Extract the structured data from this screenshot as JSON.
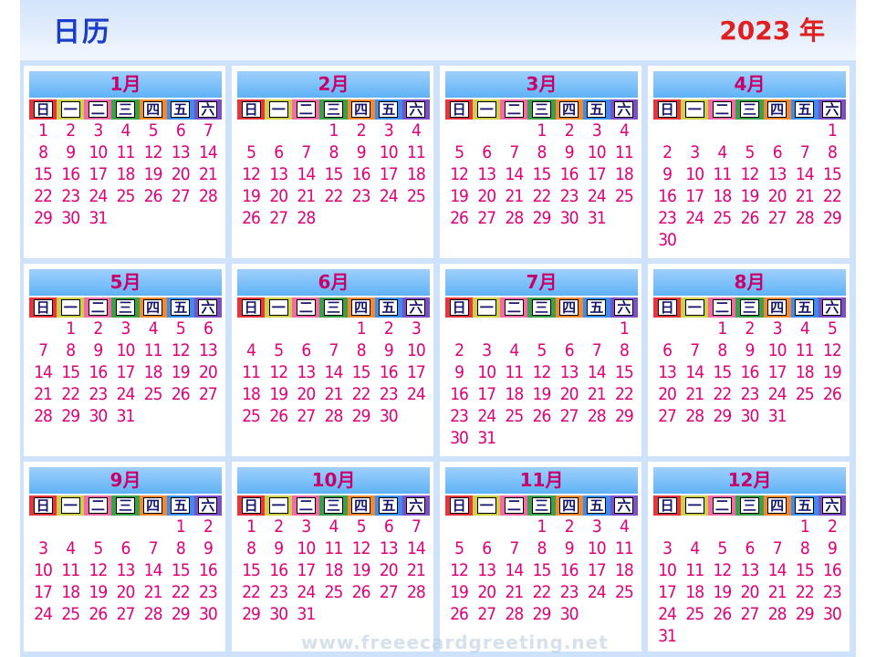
{
  "header": {
    "title": "日历",
    "year": "2023 年"
  },
  "weekdays": [
    "日",
    "一",
    "二",
    "三",
    "四",
    "五",
    "六"
  ],
  "weekday_colors": [
    "#e8343c",
    "#cfcf4a",
    "#f46aa6",
    "#3ca04a",
    "#f4882e",
    "#3a8ef0",
    "#7e4ec8"
  ],
  "watermark": "www.freeecardgreeting.net",
  "months": [
    {
      "name": "1月",
      "offset": 0,
      "days": 31
    },
    {
      "name": "2月",
      "offset": 3,
      "days": 28
    },
    {
      "name": "3月",
      "offset": 3,
      "days": 31
    },
    {
      "name": "4月",
      "offset": 6,
      "days": 30
    },
    {
      "name": "5月",
      "offset": 1,
      "days": 31
    },
    {
      "name": "6月",
      "offset": 4,
      "days": 30
    },
    {
      "name": "7月",
      "offset": 6,
      "days": 31
    },
    {
      "name": "8月",
      "offset": 2,
      "days": 31
    },
    {
      "name": "9月",
      "offset": 5,
      "days": 30
    },
    {
      "name": "10月",
      "offset": 0,
      "days": 31
    },
    {
      "name": "11月",
      "offset": 3,
      "days": 30
    },
    {
      "name": "12月",
      "offset": 5,
      "days": 31
    }
  ]
}
